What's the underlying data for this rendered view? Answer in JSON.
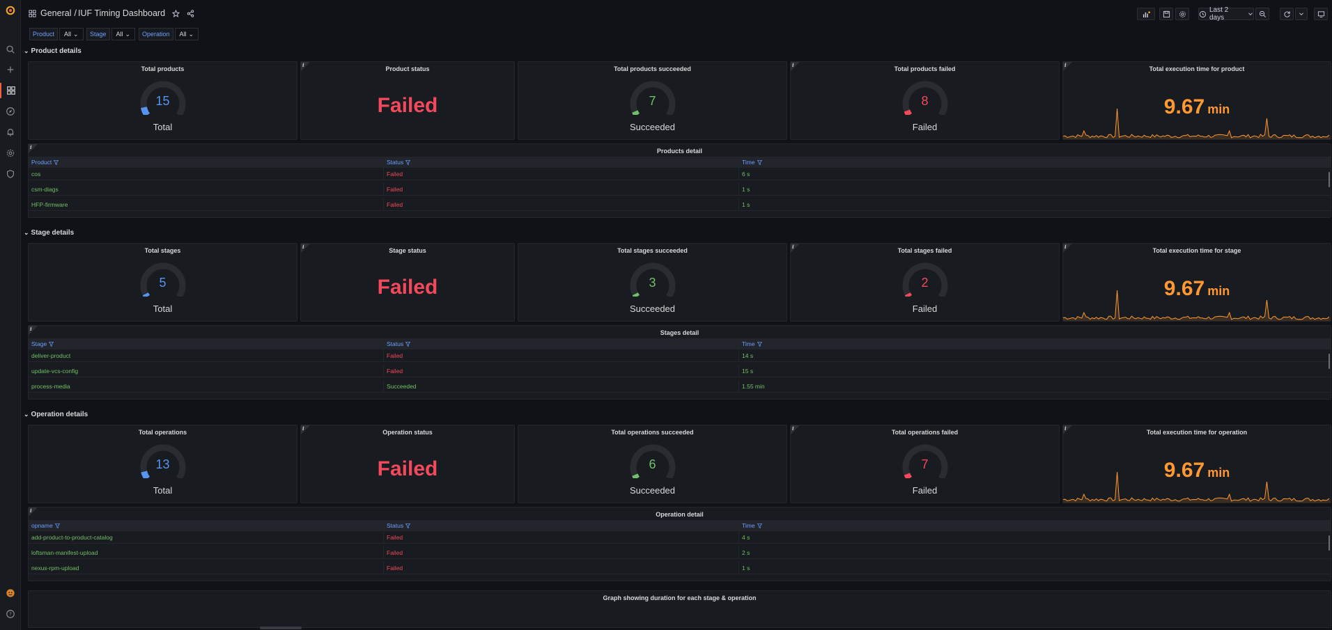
{
  "header": {
    "folder": "General",
    "separator": "/",
    "title": "IUF Timing Dashboard",
    "time_range": "Last 2 days"
  },
  "variables": [
    {
      "label": "Product",
      "value": "All"
    },
    {
      "label": "Stage",
      "value": "All"
    },
    {
      "label": "Operation",
      "value": "All"
    }
  ],
  "sections": {
    "product": {
      "row_title": "Product details",
      "total": {
        "title": "Total products",
        "value": "15",
        "caption": "Total",
        "fraction": 0.1
      },
      "status": {
        "title": "Product status",
        "value": "Failed"
      },
      "succeeded": {
        "title": "Total products succeeded",
        "value": "7",
        "caption": "Succeeded",
        "fraction": 0.05
      },
      "failed": {
        "title": "Total products failed",
        "value": "8",
        "caption": "Failed",
        "fraction": 0.06
      },
      "exec": {
        "title": "Total execution time for product",
        "value": "9.67",
        "unit": "min"
      },
      "table": {
        "title": "Products detail",
        "headers": [
          "Product",
          "Status",
          "Time"
        ],
        "rows": [
          [
            "cos",
            "Failed",
            "6 s"
          ],
          [
            "csm-diags",
            "Failed",
            "1 s"
          ],
          [
            "HFP-firmware",
            "Failed",
            "1 s"
          ]
        ]
      }
    },
    "stage": {
      "row_title": "Stage details",
      "total": {
        "title": "Total stages",
        "value": "5",
        "caption": "Total",
        "fraction": 0.04
      },
      "status": {
        "title": "Stage status",
        "value": "Failed"
      },
      "succeeded": {
        "title": "Total stages succeeded",
        "value": "3",
        "caption": "Succeeded",
        "fraction": 0.03
      },
      "failed": {
        "title": "Total stages failed",
        "value": "2",
        "caption": "Failed",
        "fraction": 0.02
      },
      "exec": {
        "title": "Total execution time for stage",
        "value": "9.67",
        "unit": "min"
      },
      "table": {
        "title": "Stages detail",
        "headers": [
          "Stage",
          "Status",
          "Time"
        ],
        "rows": [
          [
            "deliver-product",
            "Failed",
            "14 s"
          ],
          [
            "update-vcs-config",
            "Failed",
            "15 s"
          ],
          [
            "process-media",
            "Succeeded",
            "1.55 min"
          ]
        ]
      }
    },
    "operation": {
      "row_title": "Operation details",
      "total": {
        "title": "Total operations",
        "value": "13",
        "caption": "Total",
        "fraction": 0.09
      },
      "status": {
        "title": "Operation status",
        "value": "Failed"
      },
      "succeeded": {
        "title": "Total operations succeeded",
        "value": "6",
        "caption": "Succeeded",
        "fraction": 0.05
      },
      "failed": {
        "title": "Total operations failed",
        "value": "7",
        "caption": "Failed",
        "fraction": 0.06
      },
      "exec": {
        "title": "Total execution time for operation",
        "value": "9.67",
        "unit": "min"
      },
      "table": {
        "title": "Operation detail",
        "headers": [
          "opname",
          "Status",
          "Time"
        ],
        "rows": [
          [
            "add-product-to-product-catalog",
            "Failed",
            "4 s"
          ],
          [
            "loftsman-manifest-upload",
            "Failed",
            "2 s"
          ],
          [
            "nexus-rpm-upload",
            "Failed",
            "1 s"
          ]
        ]
      }
    }
  },
  "graph": {
    "title": "Graph showing duration for each stage & operation"
  },
  "colors": {
    "blue": "#5794f2",
    "green": "#73bf69",
    "red": "#f2495c",
    "orange": "#ff9830",
    "accent": "#f55f3e"
  }
}
